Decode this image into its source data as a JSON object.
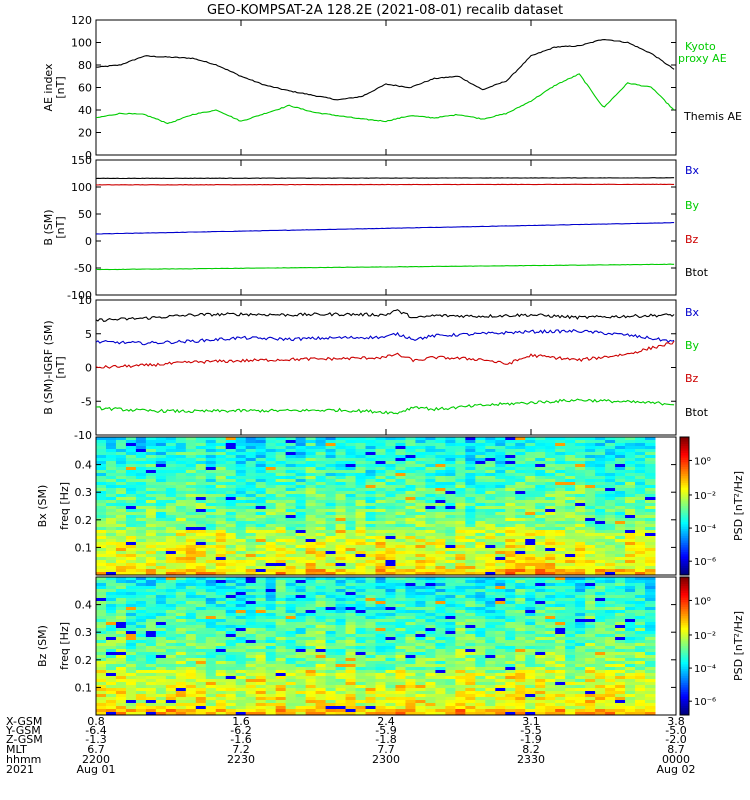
{
  "title": "GEO-KOMPSAT-2A 128.2E (2021-08-01) recalib dataset",
  "chart_data": [
    {
      "type": "line",
      "panel": "AE index",
      "ylabel": "AE index",
      "yunit": "[nT]",
      "ylim": [
        0,
        120
      ],
      "yticks": [
        0,
        20,
        40,
        60,
        80,
        100,
        120
      ],
      "x_range": [
        "2200",
        "0000"
      ],
      "series": [
        {
          "name": "Themis AE",
          "color": "#000000",
          "x": [
            0,
            5,
            10,
            15,
            20,
            25,
            30,
            35,
            40,
            45,
            50,
            55,
            60,
            65,
            70,
            75,
            80,
            85,
            90,
            95,
            100,
            105,
            110,
            115,
            120
          ],
          "y": [
            78,
            80,
            88,
            87,
            86,
            80,
            70,
            62,
            57,
            53,
            49,
            52,
            63,
            60,
            68,
            70,
            58,
            66,
            88,
            96,
            97,
            103,
            100,
            90,
            75
          ]
        },
        {
          "name": "Kyoto proxy AE",
          "color": "#00cc00",
          "x": [
            0,
            5,
            10,
            15,
            20,
            25,
            30,
            35,
            40,
            45,
            50,
            55,
            60,
            65,
            70,
            75,
            80,
            85,
            90,
            95,
            100,
            105,
            110,
            115,
            120
          ],
          "y": [
            33,
            37,
            36,
            28,
            36,
            40,
            30,
            37,
            44,
            38,
            35,
            32,
            30,
            35,
            33,
            36,
            32,
            37,
            48,
            62,
            72,
            42,
            64,
            60,
            38
          ]
        }
      ]
    },
    {
      "type": "line",
      "panel": "B (SM)",
      "ylabel": "B (SM)",
      "yunit": "[nT]",
      "ylim": [
        -100,
        150
      ],
      "yticks": [
        -100,
        -50,
        0,
        50,
        100,
        150
      ],
      "series": [
        {
          "name": "Bx",
          "color": "#0000cc",
          "x": [
            0,
            120
          ],
          "y": [
            13,
            34
          ]
        },
        {
          "name": "By",
          "color": "#00cc00",
          "x": [
            0,
            120
          ],
          "y": [
            -53,
            -43
          ]
        },
        {
          "name": "Bz",
          "color": "#cc0000",
          "x": [
            0,
            120
          ],
          "y": [
            104,
            105
          ]
        },
        {
          "name": "Btot",
          "color": "#000000",
          "x": [
            0,
            120
          ],
          "y": [
            116,
            117
          ]
        }
      ]
    },
    {
      "type": "line",
      "panel": "B (SM)-IGRF (SM)",
      "ylabel": "B (SM)-IGRF (SM)",
      "yunit": "[nT]",
      "ylim": [
        -10,
        10
      ],
      "yticks": [
        -10,
        -5,
        0,
        5,
        10
      ],
      "series": [
        {
          "name": "Btot",
          "color": "#000000",
          "x": [
            0,
            10,
            20,
            30,
            40,
            50,
            60,
            62,
            66,
            70,
            80,
            90,
            100,
            110,
            120
          ],
          "y": [
            7.0,
            7.3,
            7.8,
            7.9,
            7.8,
            7.9,
            7.8,
            8.5,
            7.3,
            7.7,
            7.6,
            7.8,
            7.4,
            7.6,
            7.8
          ]
        },
        {
          "name": "Bx",
          "color": "#0000cc",
          "x": [
            0,
            10,
            20,
            30,
            40,
            50,
            60,
            62,
            66,
            70,
            80,
            90,
            100,
            110,
            120
          ],
          "y": [
            3.8,
            3.6,
            3.9,
            4.4,
            4.2,
            4.4,
            4.5,
            5.0,
            4.2,
            4.7,
            5.0,
            5.3,
            5.4,
            4.8,
            3.8
          ]
        },
        {
          "name": "Bz",
          "color": "#cc0000",
          "x": [
            0,
            10,
            20,
            30,
            40,
            50,
            60,
            62,
            66,
            70,
            80,
            85,
            90,
            100,
            110,
            120
          ],
          "y": [
            0.0,
            0.3,
            0.8,
            1.0,
            1.2,
            1.3,
            1.5,
            2.0,
            1.0,
            1.5,
            1.2,
            0.5,
            1.8,
            1.1,
            2.0,
            3.8
          ]
        },
        {
          "name": "By",
          "color": "#00cc00",
          "x": [
            0,
            10,
            20,
            30,
            40,
            50,
            60,
            62,
            66,
            70,
            80,
            90,
            100,
            110,
            120
          ],
          "y": [
            -6.0,
            -6.4,
            -6.5,
            -6.4,
            -6.4,
            -6.3,
            -6.6,
            -6.8,
            -5.8,
            -6.2,
            -5.6,
            -5.2,
            -4.8,
            -5.1,
            -5.4
          ]
        }
      ]
    },
    {
      "type": "heatmap",
      "panel": "Bx (SM)",
      "ylabel": "Bx (SM)",
      "ylabel2": "freq [Hz]",
      "ylim": [
        0,
        0.5
      ],
      "yticks": [
        0.1,
        0.2,
        0.3,
        0.4
      ],
      "colorbar_label": "PSD [nT²/Hz]",
      "colorbar_ticks": [
        "10⁰",
        "10⁻²",
        "10⁻⁴",
        "10⁻⁶"
      ]
    },
    {
      "type": "heatmap",
      "panel": "Bz (SM)",
      "ylabel": "Bz (SM)",
      "ylabel2": "freq [Hz]",
      "ylim": [
        0,
        0.5
      ],
      "yticks": [
        0.1,
        0.2,
        0.3,
        0.4
      ],
      "colorbar_label": "PSD [nT²/Hz]",
      "colorbar_ticks": [
        "10⁰",
        "10⁻²",
        "10⁻⁴",
        "10⁻⁶"
      ]
    }
  ],
  "legend": {
    "panel1": [
      {
        "text": "Kyoto",
        "color": "#00cc00"
      },
      {
        "text": "proxy AE",
        "color": "#00cc00"
      },
      {
        "text": "Themis AE",
        "color": "#000000"
      }
    ],
    "panel2": [
      {
        "text": "Bx",
        "color": "#0000cc"
      },
      {
        "text": "By",
        "color": "#00cc00"
      },
      {
        "text": "Bz",
        "color": "#cc0000"
      },
      {
        "text": "Btot",
        "color": "#000000"
      }
    ],
    "panel3": [
      {
        "text": "Bx",
        "color": "#0000cc"
      },
      {
        "text": "By",
        "color": "#00cc00"
      },
      {
        "text": "Bz",
        "color": "#cc0000"
      },
      {
        "text": "Btot",
        "color": "#000000"
      }
    ]
  },
  "x_axis": {
    "row_labels": [
      "X-GSM",
      "Y-GSM",
      "Z-GSM",
      "MLT",
      "hhmm",
      "2021"
    ],
    "ticks": [
      {
        "values": [
          "0.8",
          "-6.4",
          "-1.3",
          "6.7",
          "2200",
          "Aug 01"
        ]
      },
      {
        "values": [
          "1.6",
          "-6.2",
          "-1.6",
          "7.2",
          "2230",
          ""
        ]
      },
      {
        "values": [
          "2.4",
          "-5.9",
          "-1.8",
          "7.7",
          "2300",
          ""
        ]
      },
      {
        "values": [
          "3.1",
          "-5.5",
          "-1.9",
          "8.2",
          "2330",
          ""
        ]
      },
      {
        "values": [
          "3.8",
          "-5.0",
          "-2.0",
          "8.7",
          "0000",
          "Aug 02"
        ]
      }
    ]
  }
}
